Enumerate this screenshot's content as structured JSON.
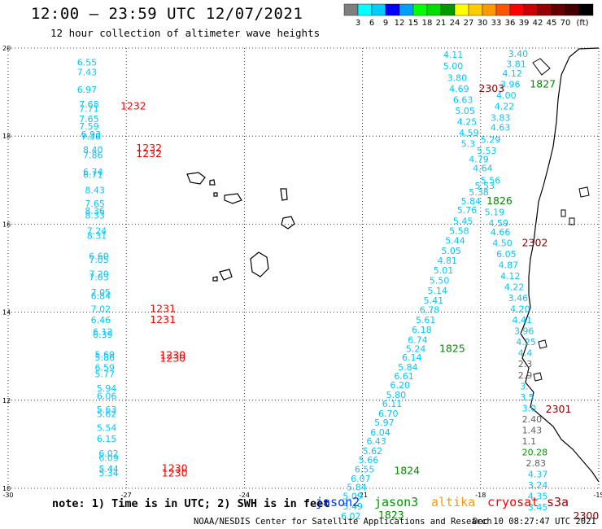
{
  "header": {
    "title": "12:00 – 23:59 UTC 12/07/2021",
    "subtitle": "12 hour collection of altimeter wave heights"
  },
  "colorbar": {
    "colors": [
      "#7f7f7f",
      "#00ffff",
      "#00ccff",
      "#0000ff",
      "#00a0ff",
      "#00ff00",
      "#00dd00",
      "#009900",
      "#ffff00",
      "#ffcc00",
      "#ff9900",
      "#ff5500",
      "#ff0000",
      "#cc0000",
      "#990000",
      "#660000",
      "#440000",
      "#000000"
    ],
    "labels": [
      "3",
      "6",
      "9",
      "12",
      "15",
      "18",
      "21",
      "24",
      "27",
      "30",
      "33",
      "36",
      "39",
      "42",
      "45",
      "70",
      "(ft)"
    ]
  },
  "axes": {
    "x_ticks": [
      -30,
      -27,
      -24,
      -21,
      -18,
      -15
    ],
    "y_ticks": [
      20,
      18,
      16,
      14,
      12,
      10
    ]
  },
  "points": [
    {
      "t": "6.55",
      "x": -28.25,
      "y": 19.6,
      "c": "#00c8ff"
    },
    {
      "t": "7.43",
      "x": -28.25,
      "y": 19.38,
      "c": "#00c8ff"
    },
    {
      "t": "6.97",
      "x": -28.25,
      "y": 18.98,
      "c": "#00c8ff"
    },
    {
      "t": "7.68",
      "x": -28.2,
      "y": 18.65,
      "c": "#00c8ff"
    },
    {
      "t": "7.71",
      "x": -28.2,
      "y": 18.55,
      "c": "#00c8ff"
    },
    {
      "t": "7.65",
      "x": -28.2,
      "y": 18.32,
      "c": "#00c8ff"
    },
    {
      "t": "7.59",
      "x": -28.2,
      "y": 18.15,
      "c": "#00c8ff"
    },
    {
      "t": "6.93",
      "x": -28.15,
      "y": 17.97,
      "c": "#00c8ff"
    },
    {
      "t": "7.38",
      "x": -28.15,
      "y": 17.92,
      "c": "#00c8ff"
    },
    {
      "t": "8.40",
      "x": -28.1,
      "y": 17.62,
      "c": "#00c8ff"
    },
    {
      "t": "7.86",
      "x": -28.1,
      "y": 17.5,
      "c": "#00c8ff"
    },
    {
      "t": "6.74",
      "x": -28.1,
      "y": 17.12,
      "c": "#00c8ff"
    },
    {
      "t": "6.71",
      "x": -28.1,
      "y": 17.05,
      "c": "#00c8ff"
    },
    {
      "t": "8.43",
      "x": -28.05,
      "y": 16.7,
      "c": "#00c8ff"
    },
    {
      "t": "7.65",
      "x": -28.05,
      "y": 16.4,
      "c": "#00c8ff"
    },
    {
      "t": "8.36",
      "x": -28.05,
      "y": 16.23,
      "c": "#00c8ff"
    },
    {
      "t": "8.33",
      "x": -28.05,
      "y": 16.13,
      "c": "#00c8ff"
    },
    {
      "t": "7.24",
      "x": -28.0,
      "y": 15.78,
      "c": "#00c8ff"
    },
    {
      "t": "8.31",
      "x": -28.0,
      "y": 15.67,
      "c": "#00c8ff"
    },
    {
      "t": "6.60",
      "x": -27.95,
      "y": 15.2,
      "c": "#00c8ff"
    },
    {
      "t": "7.05",
      "x": -27.95,
      "y": 15.12,
      "c": "#00c8ff"
    },
    {
      "t": "7.20",
      "x": -27.95,
      "y": 14.8,
      "c": "#00c8ff"
    },
    {
      "t": "7.03",
      "x": -27.95,
      "y": 14.72,
      "c": "#00c8ff"
    },
    {
      "t": "7.05",
      "x": -27.9,
      "y": 14.38,
      "c": "#00c8ff"
    },
    {
      "t": "6.84",
      "x": -27.9,
      "y": 14.3,
      "c": "#00c8ff"
    },
    {
      "t": "7.02",
      "x": -27.9,
      "y": 14.0,
      "c": "#00c8ff"
    },
    {
      "t": "6.46",
      "x": -27.9,
      "y": 13.75,
      "c": "#00c8ff"
    },
    {
      "t": "6.12",
      "x": -27.85,
      "y": 13.48,
      "c": "#00c8ff"
    },
    {
      "t": "6.39",
      "x": -27.85,
      "y": 13.42,
      "c": "#00c8ff"
    },
    {
      "t": "5.69",
      "x": -27.8,
      "y": 12.97,
      "c": "#00c8ff"
    },
    {
      "t": "5.86",
      "x": -27.8,
      "y": 12.9,
      "c": "#00c8ff"
    },
    {
      "t": "6.59",
      "x": -27.8,
      "y": 12.67,
      "c": "#00c8ff"
    },
    {
      "t": "5.77",
      "x": -27.8,
      "y": 12.52,
      "c": "#00c8ff"
    },
    {
      "t": "5.94",
      "x": -27.75,
      "y": 12.2,
      "c": "#00c8ff"
    },
    {
      "t": "6.06",
      "x": -27.75,
      "y": 12.02,
      "c": "#00c8ff"
    },
    {
      "t": "5.63",
      "x": -27.75,
      "y": 11.72,
      "c": "#00c8ff"
    },
    {
      "t": "5.62",
      "x": -27.75,
      "y": 11.62,
      "c": "#00c8ff"
    },
    {
      "t": "5.54",
      "x": -27.75,
      "y": 11.3,
      "c": "#00c8ff"
    },
    {
      "t": "6.15",
      "x": -27.75,
      "y": 11.05,
      "c": "#00c8ff"
    },
    {
      "t": "6.02",
      "x": -27.7,
      "y": 10.72,
      "c": "#00c8ff"
    },
    {
      "t": "6.09",
      "x": -27.7,
      "y": 10.62,
      "c": "#00c8ff"
    },
    {
      "t": "5.44",
      "x": -27.7,
      "y": 10.37,
      "c": "#00c8ff"
    },
    {
      "t": "5.34",
      "x": -27.7,
      "y": 10.28,
      "c": "#00c8ff"
    },
    {
      "t": "1232",
      "x": -27.15,
      "y": 18.6,
      "c": "#ff0000"
    },
    {
      "t": "1232",
      "x": -26.75,
      "y": 17.65,
      "c": "#ff0000"
    },
    {
      "t": "1232",
      "x": -26.75,
      "y": 17.52,
      "c": "#ff0000"
    },
    {
      "t": "1231",
      "x": -26.4,
      "y": 14.0,
      "c": "#ff0000"
    },
    {
      "t": "1231",
      "x": -26.4,
      "y": 13.75,
      "c": "#ff0000"
    },
    {
      "t": "1230",
      "x": -26.15,
      "y": 12.95,
      "c": "#ff0000"
    },
    {
      "t": "1230",
      "x": -26.15,
      "y": 12.87,
      "c": "#ff0000"
    },
    {
      "t": "1230",
      "x": -26.1,
      "y": 10.38,
      "c": "#ff0000"
    },
    {
      "t": "1230",
      "x": -26.1,
      "y": 10.27,
      "c": "#ff0000"
    },
    {
      "t": "4.11",
      "x": -18.95,
      "y": 19.78,
      "c": "#00c8ff"
    },
    {
      "t": "5.00",
      "x": -18.95,
      "y": 19.52,
      "c": "#00c8ff"
    },
    {
      "t": "3.80",
      "x": -18.85,
      "y": 19.25,
      "c": "#00c8ff"
    },
    {
      "t": "4.69",
      "x": -18.8,
      "y": 19.0,
      "c": "#00c8ff"
    },
    {
      "t": "6.63",
      "x": -18.7,
      "y": 18.75,
      "c": "#00c8ff"
    },
    {
      "t": "5.05",
      "x": -18.65,
      "y": 18.5,
      "c": "#00c8ff"
    },
    {
      "t": "4.25",
      "x": -18.6,
      "y": 18.25,
      "c": "#00c8ff"
    },
    {
      "t": "4.59",
      "x": -18.55,
      "y": 18.0,
      "c": "#00c8ff"
    },
    {
      "t": "5.3",
      "x": -18.5,
      "y": 17.75,
      "c": "#00c8ff"
    },
    {
      "t": "5.29",
      "x": -18.0,
      "y": 17.85,
      "c": "#00c8ff"
    },
    {
      "t": "4.63",
      "x": -17.75,
      "y": 18.12,
      "c": "#00c8ff"
    },
    {
      "t": "3.83",
      "x": -17.75,
      "y": 18.35,
      "c": "#00c8ff"
    },
    {
      "t": "4.22",
      "x": -17.65,
      "y": 18.6,
      "c": "#00c8ff"
    },
    {
      "t": "4.00",
      "x": -17.6,
      "y": 18.85,
      "c": "#00c8ff"
    },
    {
      "t": "3.96",
      "x": -17.5,
      "y": 19.1,
      "c": "#00c8ff"
    },
    {
      "t": "4.12",
      "x": -17.45,
      "y": 19.35,
      "c": "#00c8ff"
    },
    {
      "t": "3.81",
      "x": -17.35,
      "y": 19.57,
      "c": "#00c8ff"
    },
    {
      "t": "3.40",
      "x": -17.3,
      "y": 19.8,
      "c": "#00c8ff"
    },
    {
      "t": "5.53",
      "x": -18.1,
      "y": 17.6,
      "c": "#00c8ff"
    },
    {
      "t": "4.79",
      "x": -18.3,
      "y": 17.4,
      "c": "#00c8ff"
    },
    {
      "t": "4.64",
      "x": -18.2,
      "y": 17.2,
      "c": "#00c8ff"
    },
    {
      "t": "5.56",
      "x": -18.0,
      "y": 16.92,
      "c": "#00c8ff"
    },
    {
      "t": "5.53",
      "x": -18.15,
      "y": 16.8,
      "c": "#00c8ff"
    },
    {
      "t": "5.38",
      "x": -18.3,
      "y": 16.65,
      "c": "#00c8ff"
    },
    {
      "t": "5.84",
      "x": -18.5,
      "y": 16.45,
      "c": "#00c8ff"
    },
    {
      "t": "5.76",
      "x": -18.6,
      "y": 16.25,
      "c": "#00c8ff"
    },
    {
      "t": "5.19",
      "x": -17.9,
      "y": 16.2,
      "c": "#00c8ff"
    },
    {
      "t": "4.59",
      "x": -17.8,
      "y": 15.95,
      "c": "#00c8ff"
    },
    {
      "t": "5.45",
      "x": -18.7,
      "y": 16.0,
      "c": "#00c8ff"
    },
    {
      "t": "4.66",
      "x": -17.75,
      "y": 15.75,
      "c": "#00c8ff"
    },
    {
      "t": "5.58",
      "x": -18.8,
      "y": 15.78,
      "c": "#00c8ff"
    },
    {
      "t": "5.44",
      "x": -18.9,
      "y": 15.55,
      "c": "#00c8ff"
    },
    {
      "t": "4.50",
      "x": -17.7,
      "y": 15.5,
      "c": "#00c8ff"
    },
    {
      "t": "5.05",
      "x": -19.0,
      "y": 15.32,
      "c": "#00c8ff"
    },
    {
      "t": "6.05",
      "x": -17.6,
      "y": 15.25,
      "c": "#00c8ff"
    },
    {
      "t": "4.81",
      "x": -19.1,
      "y": 15.1,
      "c": "#00c8ff"
    },
    {
      "t": "4.87",
      "x": -17.55,
      "y": 15.0,
      "c": "#00c8ff"
    },
    {
      "t": "5.01",
      "x": -19.2,
      "y": 14.88,
      "c": "#00c8ff"
    },
    {
      "t": "4.12",
      "x": -17.5,
      "y": 14.75,
      "c": "#00c8ff"
    },
    {
      "t": "5.50",
      "x": -19.3,
      "y": 14.65,
      "c": "#00c8ff"
    },
    {
      "t": "4.22",
      "x": -17.4,
      "y": 14.5,
      "c": "#00c8ff"
    },
    {
      "t": "5.14",
      "x": -19.35,
      "y": 14.42,
      "c": "#00c8ff"
    },
    {
      "t": "3.46",
      "x": -17.3,
      "y": 14.25,
      "c": "#00c8ff"
    },
    {
      "t": "5.41",
      "x": -19.45,
      "y": 14.2,
      "c": "#00c8ff"
    },
    {
      "t": "4.20",
      "x": -17.25,
      "y": 14.0,
      "c": "#00c8ff"
    },
    {
      "t": "6.78",
      "x": -19.55,
      "y": 13.98,
      "c": "#00c8ff"
    },
    {
      "t": "4.41",
      "x": -17.2,
      "y": 13.75,
      "c": "#00c8ff"
    },
    {
      "t": "5.61",
      "x": -19.65,
      "y": 13.75,
      "c": "#00c8ff"
    },
    {
      "t": "6.18",
      "x": -19.75,
      "y": 13.53,
      "c": "#00c8ff"
    },
    {
      "t": "3.96",
      "x": -17.15,
      "y": 13.5,
      "c": "#00c8ff"
    },
    {
      "t": "6.74",
      "x": -19.85,
      "y": 13.3,
      "c": "#00c8ff"
    },
    {
      "t": "4.25",
      "x": -17.1,
      "y": 13.25,
      "c": "#00c8ff"
    },
    {
      "t": "5.24",
      "x": -19.9,
      "y": 13.1,
      "c": "#00c8ff"
    },
    {
      "t": "4.4",
      "x": -17.05,
      "y": 13.0,
      "c": "#00c8ff"
    },
    {
      "t": "6.14",
      "x": -20.0,
      "y": 12.9,
      "c": "#00c8ff"
    },
    {
      "t": "5.84",
      "x": -20.1,
      "y": 12.68,
      "c": "#00c8ff"
    },
    {
      "t": "2.3",
      "x": -17.05,
      "y": 12.75,
      "c": "#606060"
    },
    {
      "t": "6.61",
      "x": -20.2,
      "y": 12.48,
      "c": "#00c8ff"
    },
    {
      "t": "2.9",
      "x": -17.05,
      "y": 12.5,
      "c": "#606060"
    },
    {
      "t": "6.20",
      "x": -20.3,
      "y": 12.27,
      "c": "#00c8ff"
    },
    {
      "t": "3.",
      "x": -17.0,
      "y": 12.25,
      "c": "#00c8ff"
    },
    {
      "t": "5.80",
      "x": -20.4,
      "y": 12.05,
      "c": "#00c8ff"
    },
    {
      "t": "3.5",
      "x": -17.0,
      "y": 12.0,
      "c": "#00c8ff"
    },
    {
      "t": "6.11",
      "x": -20.5,
      "y": 11.85,
      "c": "#00c8ff"
    },
    {
      "t": "3.0",
      "x": -16.95,
      "y": 11.75,
      "c": "#00c8ff"
    },
    {
      "t": "6.70",
      "x": -20.6,
      "y": 11.63,
      "c": "#00c8ff"
    },
    {
      "t": "5.97",
      "x": -20.7,
      "y": 11.42,
      "c": "#00c8ff"
    },
    {
      "t": "2.40",
      "x": -16.95,
      "y": 11.5,
      "c": "#606060"
    },
    {
      "t": "6.04",
      "x": -20.8,
      "y": 11.2,
      "c": "#00c8ff"
    },
    {
      "t": "1.43",
      "x": -16.95,
      "y": 11.25,
      "c": "#606060"
    },
    {
      "t": "6.43",
      "x": -20.9,
      "y": 11.0,
      "c": "#00c8ff"
    },
    {
      "t": "1.1",
      "x": -16.95,
      "y": 11.0,
      "c": "#606060"
    },
    {
      "t": "5.62",
      "x": -21.0,
      "y": 10.78,
      "c": "#00c8ff"
    },
    {
      "t": "20.28",
      "x": -16.95,
      "y": 10.75,
      "c": "#009900"
    },
    {
      "t": "5.66",
      "x": -21.1,
      "y": 10.57,
      "c": "#00c8ff"
    },
    {
      "t": "2.83",
      "x": -16.85,
      "y": 10.5,
      "c": "#606060"
    },
    {
      "t": "6.55",
      "x": -21.2,
      "y": 10.36,
      "c": "#00c8ff"
    },
    {
      "t": "4.37",
      "x": -16.8,
      "y": 10.25,
      "c": "#00c8ff"
    },
    {
      "t": "6.07",
      "x": -21.3,
      "y": 10.15,
      "c": "#00c8ff"
    },
    {
      "t": "3.24",
      "x": -16.8,
      "y": 10.0,
      "c": "#00c8ff"
    },
    {
      "t": "5.84",
      "x": -21.4,
      "y": 9.95,
      "c": "#00c8ff"
    },
    {
      "t": "4.35",
      "x": -16.8,
      "y": 9.75,
      "c": "#00c8ff"
    },
    {
      "t": "5.09",
      "x": -21.5,
      "y": 9.75,
      "c": "#00c8ff"
    },
    {
      "t": "3.45",
      "x": -16.8,
      "y": 9.5,
      "c": "#00c8ff"
    },
    {
      "t": "5.49",
      "x": -21.5,
      "y": 9.52,
      "c": "#00c8ff"
    },
    {
      "t": "6.02",
      "x": -21.55,
      "y": 9.3,
      "c": "#00c8ff"
    },
    {
      "t": "2303",
      "x": -18.05,
      "y": 19.0,
      "c": "#880000"
    },
    {
      "t": "1827",
      "x": -16.75,
      "y": 19.1,
      "c": "#008800"
    },
    {
      "t": "1826",
      "x": -17.85,
      "y": 16.45,
      "c": "#008800"
    },
    {
      "t": "2302",
      "x": -16.95,
      "y": 15.5,
      "c": "#880000"
    },
    {
      "t": "1825",
      "x": -19.05,
      "y": 13.1,
      "c": "#008800"
    },
    {
      "t": "2301",
      "x": -16.35,
      "y": 11.72,
      "c": "#880000"
    },
    {
      "t": "1824",
      "x": -20.2,
      "y": 10.32,
      "c": "#008800"
    },
    {
      "t": "1823",
      "x": -20.6,
      "y": 9.32,
      "c": "#008800"
    },
    {
      "t": "2300",
      "x": -15.65,
      "y": 9.3,
      "c": "#880000"
    }
  ],
  "legend": {
    "note": "note: 1) Time is in UTC; 2) SWH is in feet",
    "sat1": "jason2",
    "sat2": "jason3",
    "sat3": "altika",
    "sat4": "cryosat",
    "sat5": "s3a"
  },
  "footer": {
    "left": "NOAA/NESDIS Center for Satellite Applications and Research",
    "right": "Dec 10 08:27:47 UTC 2021"
  }
}
